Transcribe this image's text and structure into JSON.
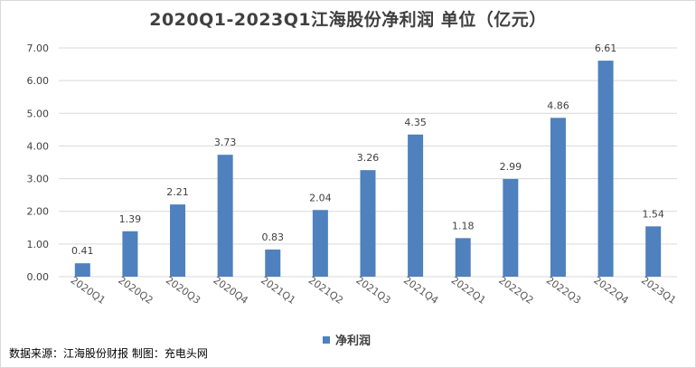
{
  "title": "2020Q1-2023Q1江海股份净利润 单位（亿元）",
  "source": "数据来源：江海股份财报 制图：充电头网",
  "colors": {
    "bar": "#4e81bd",
    "grid": "#d9d9d9"
  },
  "chart_data": {
    "type": "bar",
    "title": "2020Q1-2023Q1江海股份净利润 单位（亿元）",
    "xlabel": "",
    "ylabel": "",
    "categories": [
      "2020Q1",
      "2020Q2",
      "2020Q3",
      "2020Q4",
      "2021Q1",
      "2021Q2",
      "2021Q3",
      "2021Q4",
      "2022Q1",
      "2022Q2",
      "2022Q3",
      "2022Q4",
      "2023Q1"
    ],
    "series": [
      {
        "name": "净利润",
        "values": [
          0.41,
          1.39,
          2.21,
          3.73,
          0.83,
          2.04,
          3.26,
          4.35,
          1.18,
          2.99,
          4.86,
          6.61,
          1.54
        ]
      }
    ],
    "data_labels": [
      "0.41",
      "1.39",
      "2.21",
      "3.73",
      "0.83",
      "2.04",
      "3.26",
      "4.35",
      "1.18",
      "2.99",
      "4.86",
      "6.61",
      "1.54"
    ],
    "yticks": [
      "0.00",
      "1.00",
      "2.00",
      "3.00",
      "4.00",
      "5.00",
      "6.00",
      "7.00"
    ],
    "ylim": [
      0,
      7
    ],
    "grid": true,
    "legend_position": "bottom"
  }
}
